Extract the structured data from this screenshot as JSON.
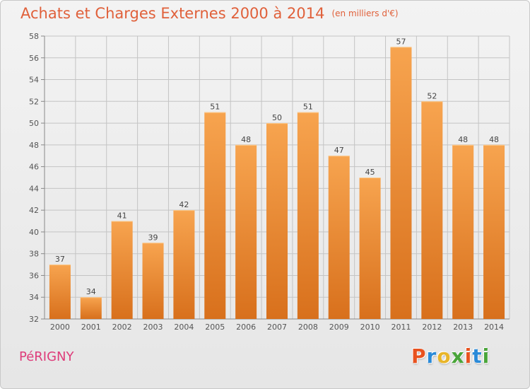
{
  "header": {
    "title": "Achats et Charges Externes 2000 à 2014",
    "unit": "(en milliers d'€)"
  },
  "footer": {
    "commune": "PéRIGNY",
    "brand": "Proxiti",
    "brand_colors": [
      "#e8521f",
      "#2a8ad8",
      "#e8b52a",
      "#4aa53a",
      "#e8521f",
      "#2a8ad8",
      "#4aa53a"
    ]
  },
  "colors": {
    "bar_top": "#f7a44f",
    "bar_bottom": "#d8701c",
    "title": "#e0603a",
    "grid": "#c4c4c4"
  },
  "chart_data": {
    "type": "bar",
    "categories": [
      "2000",
      "2001",
      "2002",
      "2003",
      "2004",
      "2005",
      "2006",
      "2007",
      "2008",
      "2009",
      "2010",
      "2011",
      "2012",
      "2013",
      "2014"
    ],
    "values": [
      37,
      34,
      41,
      39,
      42,
      51,
      48,
      50,
      51,
      47,
      45,
      57,
      52,
      48,
      48
    ],
    "ylim": [
      32,
      58
    ],
    "yticks": [
      32,
      34,
      36,
      38,
      40,
      42,
      44,
      46,
      48,
      50,
      52,
      54,
      56,
      58
    ],
    "grid": true,
    "legend": "none"
  }
}
